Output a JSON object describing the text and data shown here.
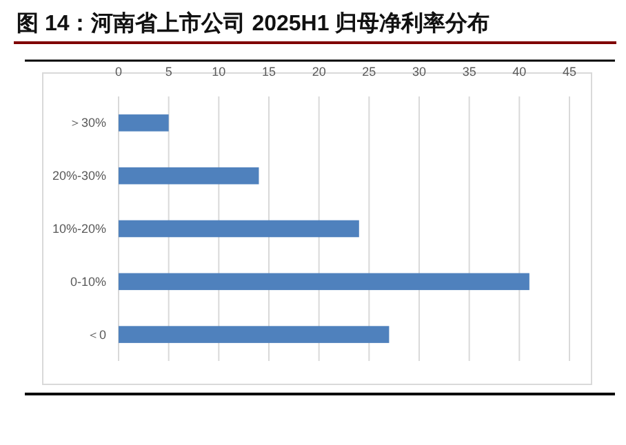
{
  "chart_data": {
    "type": "bar",
    "orientation": "horizontal",
    "title": "图 14：河南省上市公司 2025H1 归母净利率分布",
    "categories": [
      "＞30%",
      "20%-30%",
      "10%-20%",
      "0-10%",
      "＜0"
    ],
    "values": [
      5,
      14,
      24,
      41,
      27
    ],
    "color": "#4f81bd",
    "xlim": [
      0,
      45
    ],
    "xticks": [
      0,
      5,
      10,
      15,
      20,
      25,
      30,
      35,
      40,
      45
    ],
    "grid": "x"
  }
}
